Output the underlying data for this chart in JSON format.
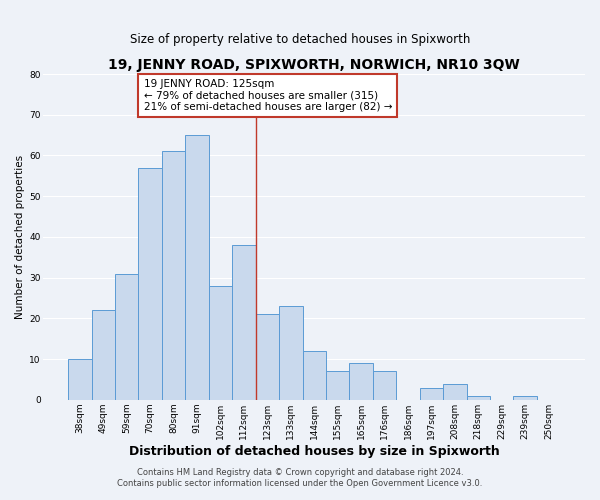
{
  "title": "19, JENNY ROAD, SPIXWORTH, NORWICH, NR10 3QW",
  "subtitle": "Size of property relative to detached houses in Spixworth",
  "xlabel": "Distribution of detached houses by size in Spixworth",
  "ylabel": "Number of detached properties",
  "bar_labels": [
    "38sqm",
    "49sqm",
    "59sqm",
    "70sqm",
    "80sqm",
    "91sqm",
    "102sqm",
    "112sqm",
    "123sqm",
    "133sqm",
    "144sqm",
    "155sqm",
    "165sqm",
    "176sqm",
    "186sqm",
    "197sqm",
    "208sqm",
    "218sqm",
    "229sqm",
    "239sqm",
    "250sqm"
  ],
  "bar_values": [
    10,
    22,
    31,
    57,
    61,
    65,
    28,
    38,
    21,
    23,
    12,
    7,
    9,
    7,
    0,
    3,
    4,
    1,
    0,
    1,
    0
  ],
  "bar_color": "#c9d9ed",
  "bar_edge_color": "#5b9bd5",
  "vline_color": "#c0392b",
  "vline_bin": 8,
  "annotation_title": "19 JENNY ROAD: 125sqm",
  "annotation_line1": "← 79% of detached houses are smaller (315)",
  "annotation_line2": "21% of semi-detached houses are larger (82) →",
  "annotation_box_edgecolor": "#c0392b",
  "annotation_box_facecolor": "#ffffff",
  "ylim": [
    0,
    80
  ],
  "yticks": [
    0,
    10,
    20,
    30,
    40,
    50,
    60,
    70,
    80
  ],
  "footer1": "Contains HM Land Registry data © Crown copyright and database right 2024.",
  "footer2": "Contains public sector information licensed under the Open Government Licence v3.0.",
  "background_color": "#eef2f8",
  "grid_color": "#ffffff",
  "title_fontsize": 10,
  "subtitle_fontsize": 8.5,
  "xlabel_fontsize": 9,
  "ylabel_fontsize": 7.5,
  "tick_fontsize": 6.5,
  "annotation_fontsize": 7.5,
  "footer_fontsize": 6
}
